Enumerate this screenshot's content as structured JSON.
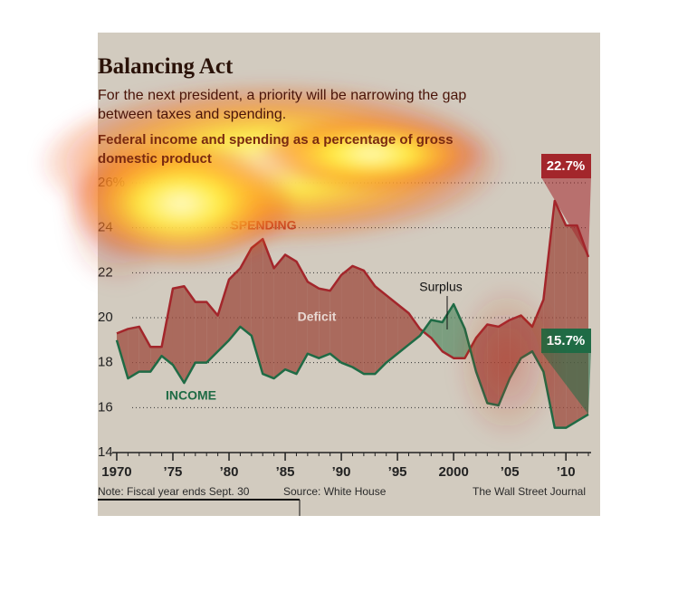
{
  "chart_data": {
    "type": "line",
    "title": "Balancing Act",
    "subtitle": "For the next president, a priority will be narrowing the gap between taxes and spending.",
    "description": "Federal income and spending as a percentage of gross domestic product",
    "x": [
      1970,
      1971,
      1972,
      1973,
      1974,
      1975,
      1976,
      1977,
      1978,
      1979,
      1980,
      1981,
      1982,
      1983,
      1984,
      1985,
      1986,
      1987,
      1988,
      1989,
      1990,
      1991,
      1992,
      1993,
      1994,
      1995,
      1996,
      1997,
      1998,
      1999,
      2000,
      2001,
      2002,
      2003,
      2004,
      2005,
      2006,
      2007,
      2008,
      2009,
      2010,
      2011,
      2012
    ],
    "series": [
      {
        "name": "SPENDING",
        "color": "#a3262b",
        "values": [
          19.3,
          19.5,
          19.6,
          18.7,
          18.7,
          21.3,
          21.4,
          20.7,
          20.7,
          20.1,
          21.7,
          22.2,
          23.1,
          23.5,
          22.2,
          22.8,
          22.5,
          21.6,
          21.3,
          21.2,
          21.9,
          22.3,
          22.1,
          21.4,
          21.0,
          20.6,
          20.2,
          19.5,
          19.1,
          18.5,
          18.2,
          18.2,
          19.1,
          19.7,
          19.6,
          19.9,
          20.1,
          19.6,
          20.8,
          25.2,
          24.1,
          24.1,
          22.7
        ],
        "value_labels": [
          null,
          null,
          null,
          null,
          null,
          null,
          null,
          null,
          null,
          null,
          null,
          null,
          null,
          null,
          null,
          null,
          null,
          null,
          null,
          null,
          null,
          null,
          null,
          null,
          null,
          null,
          null,
          null,
          null,
          null,
          null,
          null,
          null,
          null,
          null,
          null,
          null,
          null,
          null,
          null,
          null,
          null,
          "22.7%"
        ]
      },
      {
        "name": "INCOME",
        "color": "#1f6b45",
        "values": [
          19.0,
          17.3,
          17.6,
          17.6,
          18.3,
          17.9,
          17.1,
          18.0,
          18.0,
          18.5,
          19.0,
          19.6,
          19.2,
          17.5,
          17.3,
          17.7,
          17.5,
          18.4,
          18.2,
          18.4,
          18.0,
          17.8,
          17.5,
          17.5,
          18.0,
          18.4,
          18.8,
          19.2,
          19.9,
          19.8,
          20.6,
          19.5,
          17.6,
          16.2,
          16.1,
          17.3,
          18.2,
          18.5,
          17.6,
          15.1,
          15.1,
          15.4,
          15.7
        ],
        "value_labels": [
          null,
          null,
          null,
          null,
          null,
          null,
          null,
          null,
          null,
          null,
          null,
          null,
          null,
          null,
          null,
          null,
          null,
          null,
          null,
          null,
          null,
          null,
          null,
          null,
          null,
          null,
          null,
          null,
          null,
          null,
          null,
          null,
          null,
          null,
          null,
          null,
          null,
          null,
          null,
          null,
          null,
          null,
          "15.7%"
        ]
      }
    ],
    "deficit_label": "Deficit",
    "surplus_label": "Surplus",
    "deficit_color": "#9c4a3c",
    "surplus_color": "#5e8f6a",
    "xlim": [
      1969.6,
      2012
    ],
    "xticks": [
      1970,
      {
        "value": 1975,
        "label": "’75"
      },
      {
        "value": 1980,
        "label": "’80"
      },
      {
        "value": 1985,
        "label": "’85"
      },
      {
        "value": 1990,
        "label": "’90"
      },
      {
        "value": 1995,
        "label": "’95"
      },
      2000,
      {
        "value": 2005,
        "label": "’05"
      },
      {
        "value": 2010,
        "label": "’10"
      }
    ],
    "ylim": [
      14,
      26
    ],
    "yticks": [
      14,
      16,
      18,
      20,
      22,
      24,
      {
        "value": 26,
        "label": "26%"
      }
    ],
    "grid": true,
    "note": "Note: Fiscal year ends Sept. 30",
    "source": "Source: White House",
    "credit": "The Wall Street Journal"
  }
}
